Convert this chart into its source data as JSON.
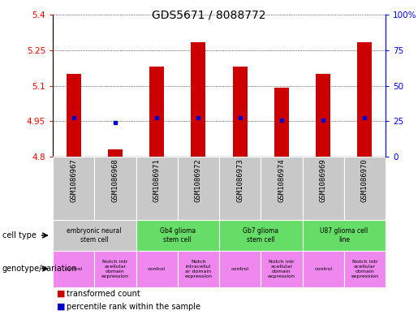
{
  "title": "GDS5671 / 8088772",
  "samples": [
    "GSM1086967",
    "GSM1086968",
    "GSM1086971",
    "GSM1086972",
    "GSM1086973",
    "GSM1086974",
    "GSM1086969",
    "GSM1086970"
  ],
  "transformed_counts": [
    5.15,
    4.83,
    5.18,
    5.285,
    5.18,
    5.09,
    5.15,
    5.285
  ],
  "percentile_values": [
    4.965,
    4.945,
    4.965,
    4.965,
    4.965,
    4.955,
    4.955,
    4.965
  ],
  "y_min": 4.8,
  "y_max": 5.4,
  "y_ticks": [
    4.8,
    4.95,
    5.1,
    5.25,
    5.4
  ],
  "right_y_ticks": [
    0,
    25,
    50,
    75,
    100
  ],
  "cell_types": [
    {
      "label": "embryonic neural\nstem cell",
      "start": 0,
      "end": 2,
      "color": "#c8c8c8"
    },
    {
      "label": "Gb4 glioma\nstem cell",
      "start": 2,
      "end": 4,
      "color": "#66dd66"
    },
    {
      "label": "Gb7 glioma\nstem cell",
      "start": 4,
      "end": 6,
      "color": "#66dd66"
    },
    {
      "label": "U87 glioma cell\nline",
      "start": 6,
      "end": 8,
      "color": "#66dd66"
    }
  ],
  "genotypes": [
    {
      "label": "control",
      "start": 0,
      "end": 1,
      "color": "#ee88ee"
    },
    {
      "label": "Notch intr\nacellular\ndomain\nexpression",
      "start": 1,
      "end": 2,
      "color": "#ee88ee"
    },
    {
      "label": "control",
      "start": 2,
      "end": 3,
      "color": "#ee88ee"
    },
    {
      "label": "Notch\nintracellul\nar domain\nexpression",
      "start": 3,
      "end": 4,
      "color": "#ee88ee"
    },
    {
      "label": "control",
      "start": 4,
      "end": 5,
      "color": "#ee88ee"
    },
    {
      "label": "Notch intr\nacellular\ndomain\nexpression",
      "start": 5,
      "end": 6,
      "color": "#ee88ee"
    },
    {
      "label": "control",
      "start": 6,
      "end": 7,
      "color": "#ee88ee"
    },
    {
      "label": "Notch intr\nacellular\ndomain\nexpression",
      "start": 7,
      "end": 8,
      "color": "#ee88ee"
    }
  ],
  "bar_color": "#cc0000",
  "dot_color": "#0000cc",
  "bar_bottom": 4.8,
  "gsm_bg_color": "#c8c8c8"
}
